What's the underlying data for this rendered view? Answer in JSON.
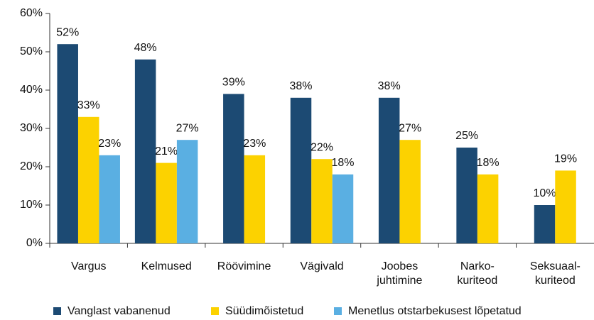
{
  "chart_data": {
    "type": "bar",
    "categories": [
      "Vargus",
      "Kelmused",
      "Röövimine",
      "Vägivald",
      "Joobes\njuhtimine",
      "Narko-\nkuriteod",
      "Seksuaal-\nkuriteod"
    ],
    "series": [
      {
        "name": "Vanglast vabanenud",
        "color": "#1c4a73",
        "values": [
          52,
          48,
          39,
          38,
          38,
          25,
          10
        ],
        "value_labels": [
          "52%",
          "48%",
          "39%",
          "38%",
          "38%",
          "25%",
          "10%"
        ]
      },
      {
        "name": "Süüdimõistetud",
        "color": "#fcd200",
        "values": [
          33,
          21,
          23,
          22,
          27,
          18,
          19
        ],
        "value_labels": [
          "33%",
          "21%",
          "23%",
          "22%",
          "27%",
          "18%",
          "19%"
        ]
      },
      {
        "name": "Menetlus otstarbekusest lõpetatud",
        "color": "#5aafe2",
        "values": [
          23,
          27,
          null,
          18,
          null,
          null,
          null
        ],
        "value_labels": [
          "23%",
          "27%",
          null,
          "18%",
          null,
          null,
          null
        ]
      }
    ],
    "ylim": [
      0,
      60
    ],
    "yticks": [
      {
        "value": 0,
        "label": "0%"
      },
      {
        "value": 10,
        "label": "10%"
      },
      {
        "value": 20,
        "label": "20%"
      },
      {
        "value": 30,
        "label": "30%"
      },
      {
        "value": 40,
        "label": "40%"
      },
      {
        "value": 50,
        "label": "50%"
      },
      {
        "value": 60,
        "label": "60%"
      }
    ],
    "legend": "bottom"
  }
}
